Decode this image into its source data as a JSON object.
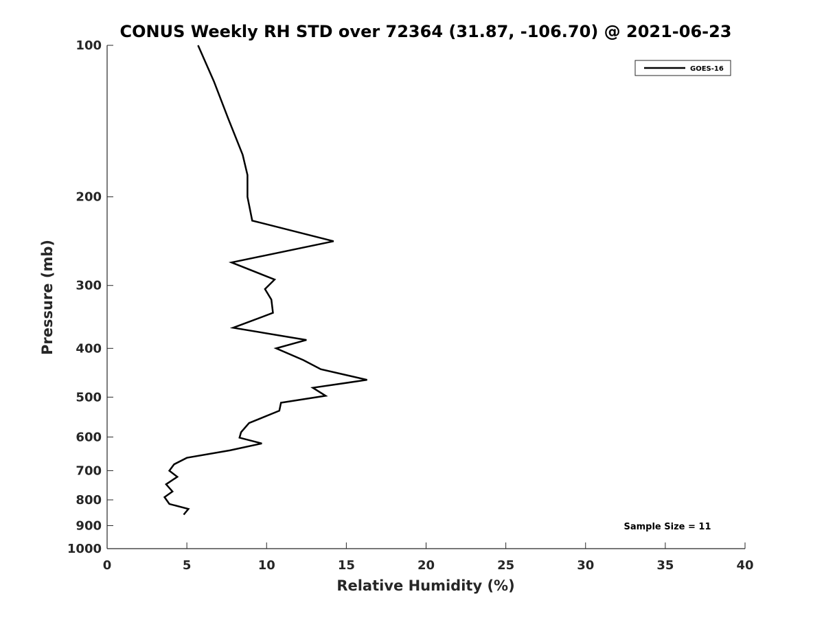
{
  "chart_data": {
    "type": "line",
    "title": "CONUS Weekly RH STD over 72364 (31.87, -106.70) @ 2021-06-23",
    "xlabel": "Relative Humidity (%)",
    "ylabel": "Pressure (mb)",
    "xlim": [
      0,
      40
    ],
    "ylim": [
      100,
      1000
    ],
    "y_scale": "log",
    "y_reversed": true,
    "x_ticks": [
      0,
      5,
      10,
      15,
      20,
      25,
      30,
      35,
      40
    ],
    "y_ticks": [
      100,
      200,
      300,
      400,
      500,
      600,
      700,
      800,
      900,
      1000
    ],
    "grid": false,
    "legend_position": "top-right",
    "annotation": "Sample Size = 11",
    "series": [
      {
        "name": "GOES-16",
        "color": "#000000",
        "x": [
          5.7,
          6.7,
          7.6,
          8.5,
          8.8,
          8.8,
          9.1,
          14.2,
          7.8,
          10.5,
          9.9,
          10.3,
          10.4,
          7.9,
          12.5,
          10.6,
          12.3,
          13.4,
          16.3,
          12.9,
          13.7,
          10.9,
          10.8,
          8.9,
          8.4,
          8.3,
          9.7,
          7.7,
          5.0,
          4.2,
          3.9,
          4.4,
          3.7,
          4.1,
          3.6,
          3.9,
          5.1,
          4.8
        ],
        "y": [
          100,
          118,
          140,
          165,
          181,
          200,
          223,
          245,
          270,
          292,
          305,
          320,
          340,
          364,
          385,
          400,
          422,
          440,
          462,
          479,
          497,
          513,
          532,
          563,
          587,
          602,
          618,
          638,
          660,
          680,
          700,
          720,
          745,
          770,
          790,
          815,
          834,
          856
        ]
      }
    ]
  }
}
